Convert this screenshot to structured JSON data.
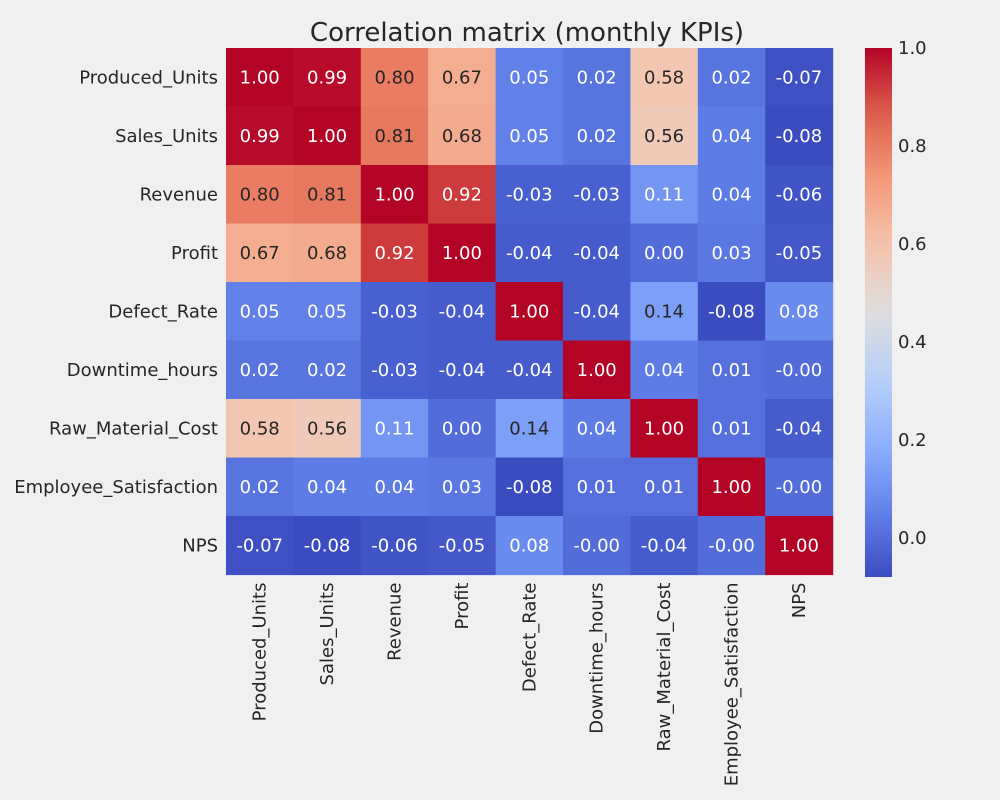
{
  "chart_data": {
    "type": "heatmap",
    "title": "Correlation matrix (monthly KPIs)",
    "row_labels": [
      "Produced_Units",
      "Sales_Units",
      "Revenue",
      "Profit",
      "Defect_Rate",
      "Downtime_hours",
      "Raw_Material_Cost",
      "Employee_Satisfaction",
      "NPS"
    ],
    "col_labels": [
      "Produced_Units",
      "Sales_Units",
      "Revenue",
      "Profit",
      "Defect_Rate",
      "Downtime_hours",
      "Raw_Material_Cost",
      "Employee_Satisfaction",
      "NPS"
    ],
    "values": [
      [
        1.0,
        0.99,
        0.8,
        0.67,
        0.05,
        0.02,
        0.58,
        0.02,
        -0.07
      ],
      [
        0.99,
        1.0,
        0.81,
        0.68,
        0.05,
        0.02,
        0.56,
        0.04,
        -0.08
      ],
      [
        0.8,
        0.81,
        1.0,
        0.92,
        -0.03,
        -0.03,
        0.11,
        0.04,
        -0.06
      ],
      [
        0.67,
        0.68,
        0.92,
        1.0,
        -0.04,
        -0.04,
        0.0,
        0.03,
        -0.05
      ],
      [
        0.05,
        0.05,
        -0.03,
        -0.04,
        1.0,
        -0.04,
        0.14,
        -0.08,
        0.08
      ],
      [
        0.02,
        0.02,
        -0.03,
        -0.04,
        -0.04,
        1.0,
        0.04,
        0.01,
        -0.0
      ],
      [
        0.58,
        0.56,
        0.11,
        0.0,
        0.14,
        0.04,
        1.0,
        0.01,
        -0.04
      ],
      [
        0.02,
        0.04,
        0.04,
        0.03,
        -0.08,
        0.01,
        0.01,
        1.0,
        -0.0
      ],
      [
        -0.07,
        -0.08,
        -0.06,
        -0.05,
        0.08,
        -0.0,
        -0.04,
        -0.0,
        1.0
      ]
    ],
    "value_labels": [
      [
        "1.00",
        "0.99",
        "0.80",
        "0.67",
        "0.05",
        "0.02",
        "0.58",
        "0.02",
        "-0.07"
      ],
      [
        "0.99",
        "1.00",
        "0.81",
        "0.68",
        "0.05",
        "0.02",
        "0.56",
        "0.04",
        "-0.08"
      ],
      [
        "0.80",
        "0.81",
        "1.00",
        "0.92",
        "-0.03",
        "-0.03",
        "0.11",
        "0.04",
        "-0.06"
      ],
      [
        "0.67",
        "0.68",
        "0.92",
        "1.00",
        "-0.04",
        "-0.04",
        "0.00",
        "0.03",
        "-0.05"
      ],
      [
        "0.05",
        "0.05",
        "-0.03",
        "-0.04",
        "1.00",
        "-0.04",
        "0.14",
        "-0.08",
        "0.08"
      ],
      [
        "0.02",
        "0.02",
        "-0.03",
        "-0.04",
        "-0.04",
        "1.00",
        "0.04",
        "0.01",
        "-0.00"
      ],
      [
        "0.58",
        "0.56",
        "0.11",
        "0.00",
        "0.14",
        "0.04",
        "1.00",
        "0.01",
        "-0.04"
      ],
      [
        "0.02",
        "0.04",
        "0.04",
        "0.03",
        "-0.08",
        "0.01",
        "0.01",
        "1.00",
        "-0.00"
      ],
      [
        "-0.07",
        "-0.08",
        "-0.06",
        "-0.05",
        "0.08",
        "-0.00",
        "-0.04",
        "-0.00",
        "1.00"
      ]
    ],
    "colormap": "coolwarm",
    "color_range": [
      -0.08,
      1.0
    ],
    "colorbar_ticks": [
      "0.0",
      "0.2",
      "0.4",
      "0.6",
      "0.8",
      "1.0"
    ],
    "colors": {
      "background": "#f0f0f0",
      "text_dark": "#262626",
      "text_light": "#ffffff"
    }
  }
}
